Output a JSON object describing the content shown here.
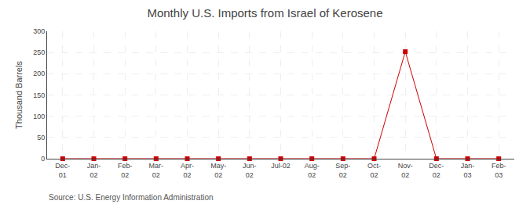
{
  "chart_data": {
    "type": "line",
    "title": "Monthly U.S. Imports from Israel of Kerosene",
    "ylabel": "Thousand Barrels",
    "annotations": [
      "Source: U.S. Energy Information Administration"
    ],
    "categories": [
      "Dec-\n01",
      "Jan-\n02",
      "Feb-\n02",
      "Mar-\n02",
      "Apr-\n02",
      "May-\n02",
      "Jun-\n02",
      "Jul-02",
      "Aug-\n02",
      "Sep-\n02",
      "Oct-\n02",
      "Nov-\n02",
      "Dec-\n02",
      "Jan-\n03",
      "Feb-\n03"
    ],
    "values": [
      0,
      0,
      0,
      0,
      0,
      0,
      0,
      0,
      0,
      0,
      0,
      252,
      0,
      0,
      0
    ],
    "color": "#cc0000",
    "marker": "square",
    "ylim": [
      0,
      300
    ],
    "yticks": [
      0,
      50,
      100,
      150,
      200,
      250,
      300
    ],
    "grid": true
  }
}
